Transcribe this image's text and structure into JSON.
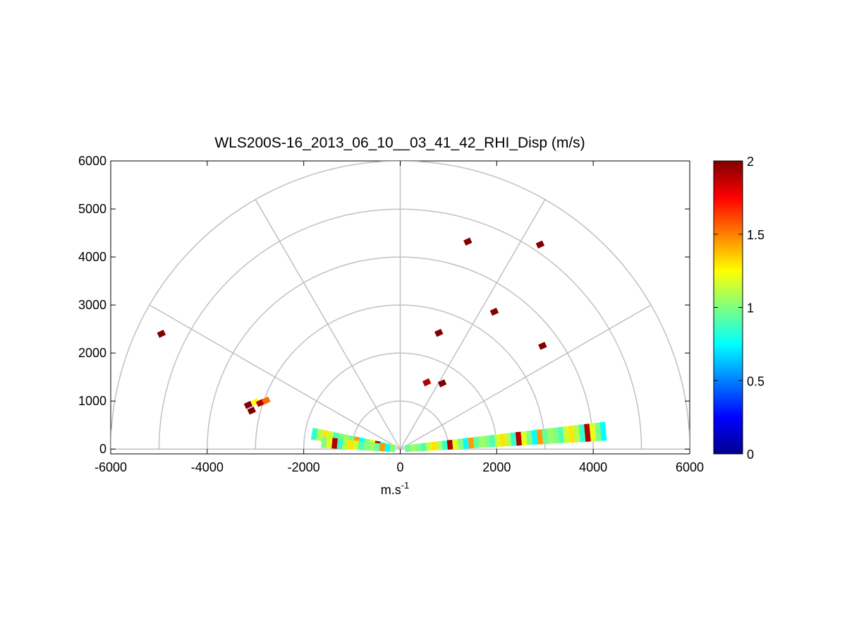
{
  "chart_data": {
    "type": "scatter",
    "title": "WLS200S-16_2013_06_10__03_41_42_RHI_Disp (m/s)",
    "xlabel_base": "m.s",
    "xlabel_exp": "-1",
    "ylabel": "",
    "xlim": [
      -6000,
      6000
    ],
    "ylim": [
      -100,
      6000
    ],
    "x_ticks": [
      "-6000",
      "-4000",
      "-2000",
      "0",
      "2000",
      "4000",
      "6000"
    ],
    "y_ticks": [
      "0",
      "1000",
      "2000",
      "3000",
      "4000",
      "5000",
      "6000"
    ],
    "polar_grid": {
      "rings_m": [
        1000,
        2000,
        3000,
        4000,
        5000,
        6000
      ],
      "spokes_deg": [
        0,
        30,
        60,
        90,
        120,
        150,
        180
      ],
      "grid_color": "#c0c0c0"
    },
    "colorbar": {
      "colormap": "jet",
      "range": [
        0,
        2
      ],
      "tick_labels": [
        "0",
        "0.5",
        "1",
        "1.5",
        "2"
      ]
    },
    "points": [
      {
        "x": -4950,
        "y": 2400,
        "v": 2.0
      },
      {
        "x": -3150,
        "y": 920,
        "v": 2.0
      },
      {
        "x": -3080,
        "y": 800,
        "v": 2.0
      },
      {
        "x": -3000,
        "y": 980,
        "v": 1.25
      },
      {
        "x": -2900,
        "y": 960,
        "v": 1.9
      },
      {
        "x": -2780,
        "y": 1010,
        "v": 1.55
      },
      {
        "x": 1400,
        "y": 4320,
        "v": 2.0
      },
      {
        "x": 2900,
        "y": 4260,
        "v": 2.0
      },
      {
        "x": 1950,
        "y": 2860,
        "v": 2.0
      },
      {
        "x": 800,
        "y": 2420,
        "v": 2.0
      },
      {
        "x": 2950,
        "y": 2150,
        "v": 2.0
      },
      {
        "x": 550,
        "y": 1390,
        "v": 1.9
      },
      {
        "x": 870,
        "y": 1370,
        "v": 2.0
      }
    ],
    "scan_bands": [
      {
        "elevation_deg": 5,
        "range_min_m": 100,
        "range_max_m": 4200
      },
      {
        "elevation_deg": 170,
        "range_min_m": 100,
        "range_max_m": 1850
      },
      {
        "elevation_deg": 175,
        "range_min_m": 100,
        "range_max_m": 1600
      }
    ]
  }
}
